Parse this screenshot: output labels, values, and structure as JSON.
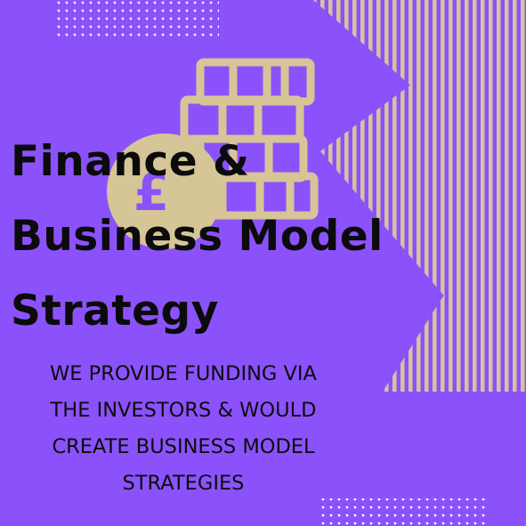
{
  "title": {
    "line1": "Finance &",
    "line2": "Business Model",
    "line3": "Strategy"
  },
  "subtitle": "WE PROVIDE FUNDING VIA\nTHE INVESTORS & WOULD\nCREATE BUSINESS MODEL\nSTRATEGIES",
  "coin_symbol": "£",
  "colors": {
    "background": "#8b52fb",
    "accent": "#d5c597",
    "text": "#0b0b0b",
    "dots": "#ffffff"
  }
}
